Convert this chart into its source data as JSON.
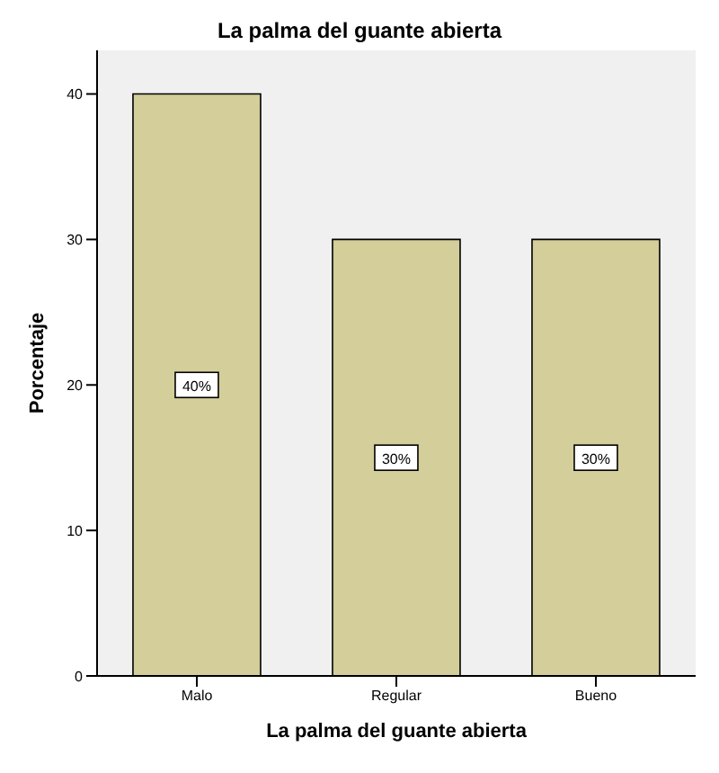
{
  "chart_data": {
    "type": "bar",
    "title": "La palma del guante abierta",
    "xlabel": "La palma del guante abierta",
    "ylabel": "Porcentaje",
    "categories": [
      "Malo",
      "Regular",
      "Bueno"
    ],
    "values": [
      40,
      30,
      30
    ],
    "color": "#d3ce9a",
    "value_labels": [
      "40%",
      "30%",
      "30%"
    ],
    "ylim": [
      0,
      43
    ],
    "yticks": [
      0,
      10,
      20,
      30,
      40
    ],
    "grid": false
  }
}
